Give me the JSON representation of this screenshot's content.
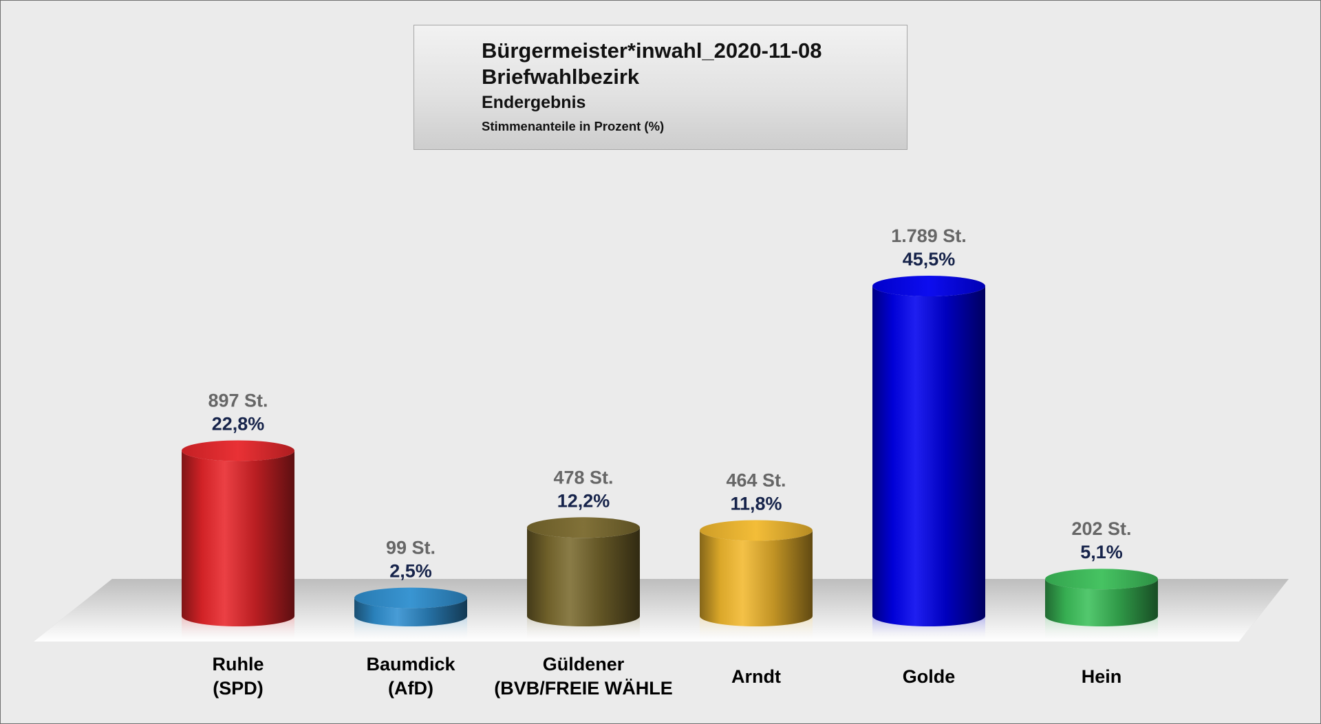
{
  "title_box": {
    "title": "Bürgermeister*inwahl_2020-11-08",
    "subtitle": "Briefwahlbezirk",
    "status": "Endergebnis",
    "note": "Stimmenanteile in Prozent (%)"
  },
  "chart_data": {
    "type": "bar",
    "title": "Bürgermeister*inwahl_2020-11-08",
    "ylabel": "",
    "xlabel": "",
    "ylim": [
      0,
      45.5
    ],
    "grid": false,
    "legend": "none",
    "categories": [
      "Ruhle (SPD)",
      "Baumdick (AfD)",
      "Güldener (BVB/FREIE WÄHLE",
      "Arndt",
      "Golde",
      "Hein"
    ],
    "bars": [
      {
        "label_lines": [
          "Ruhle",
          "(SPD)"
        ],
        "votes": 897,
        "votes_label": "897 St.",
        "percent": 22.8,
        "percent_label": "22,8%",
        "color": "#e8262a"
      },
      {
        "label_lines": [
          "Baumdick",
          "(AfD)"
        ],
        "votes": 99,
        "votes_label": "99 St.",
        "percent": 2.5,
        "percent_label": "2,5%",
        "color": "#2f8fd0"
      },
      {
        "label_lines": [
          "Güldener",
          "(BVB/FREIE WÄHLE"
        ],
        "votes": 478,
        "votes_label": "478 St.",
        "percent": 12.2,
        "percent_label": "12,2%",
        "color": "#7a6a2e"
      },
      {
        "label_lines": [
          "Arndt"
        ],
        "votes": 464,
        "votes_label": "464 St.",
        "percent": 11.8,
        "percent_label": "11,8%",
        "color": "#f2b92e"
      },
      {
        "label_lines": [
          "Golde"
        ],
        "votes": 1789,
        "votes_label": "1.789 St.",
        "percent": 45.5,
        "percent_label": "45,5%",
        "color": "#0000ee"
      },
      {
        "label_lines": [
          "Hein"
        ],
        "votes": 202,
        "votes_label": "202 St.",
        "percent": 5.1,
        "percent_label": "5,1%",
        "color": "#3cc05a"
      }
    ]
  }
}
